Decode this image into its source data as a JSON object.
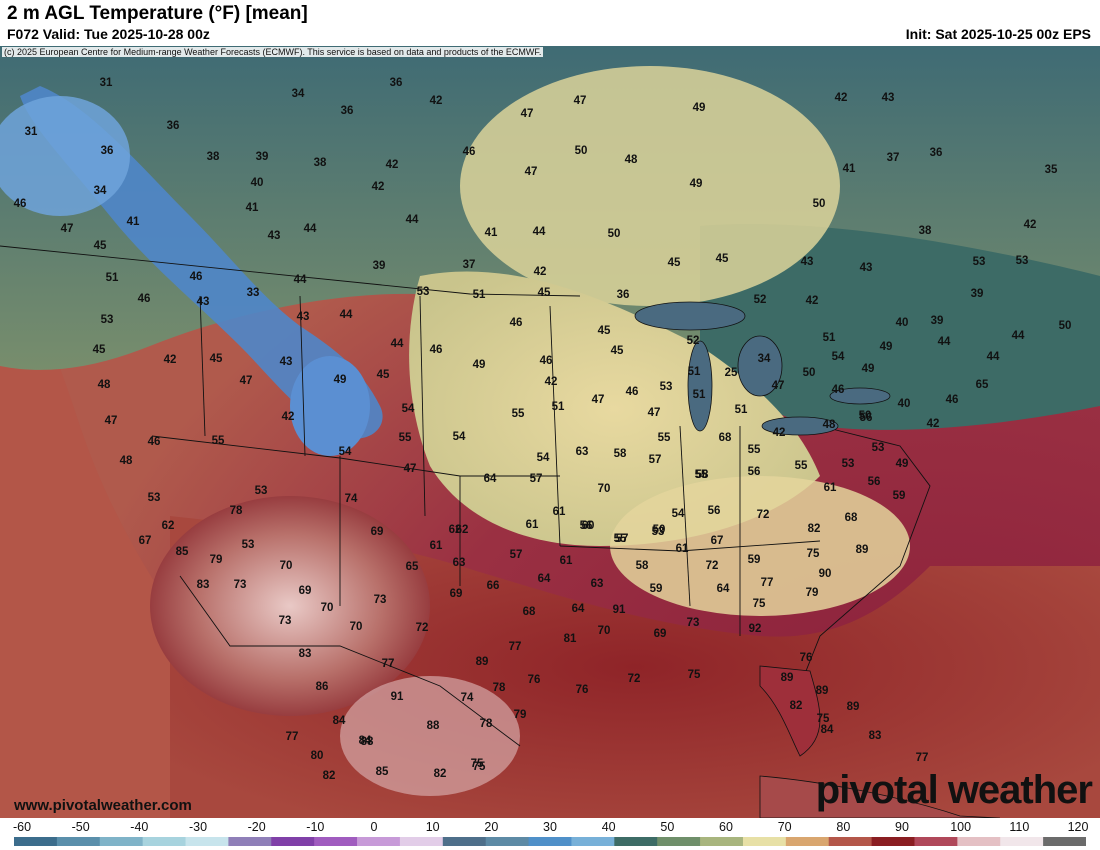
{
  "header": {
    "title": "2 m AGL Temperature (°F) [mean]",
    "valid": "F072 Valid: Tue 2025-10-28 00z",
    "init": "Init: Sat 2025-10-25 00z EPS"
  },
  "copyright": "(c) 2025 European Centre for Medium-range Weather Forecasts (ECMWF). This service is based on data and products of the ECMWF.",
  "footer": {
    "site": "www.pivotalweather.com",
    "logo": "pivotal weather"
  },
  "colorbar": {
    "units": "°F",
    "ticks": [
      "-60",
      "-50",
      "-40",
      "-30",
      "-20",
      "-10",
      "0",
      "10",
      "20",
      "30",
      "40",
      "50",
      "60",
      "70",
      "80",
      "90",
      "100",
      "110",
      "120"
    ],
    "colors": [
      "#3c6d8c",
      "#5a8fab",
      "#7fb3c8",
      "#a7d3de",
      "#c7e4ec",
      "#8f7fb8",
      "#8040a8",
      "#a05cbf",
      "#c79ad8",
      "#e2cde8",
      "#4e6f8a",
      "#5d8aa5",
      "#4f90c9",
      "#77b0d8",
      "#3d6c66",
      "#6f8f6a",
      "#a8b57e",
      "#e7e0a6",
      "#d9a66f",
      "#b4574a",
      "#8a1e22",
      "#b0485a",
      "#e4c0c4",
      "#f1e6ea",
      "#6b6b6b"
    ]
  },
  "temperature_labels": [
    {
      "city": "",
      "value": "31"
    },
    {
      "city": "",
      "value": "36"
    },
    {
      "city": "",
      "value": "34"
    },
    {
      "city": "",
      "value": "36"
    },
    {
      "city": "",
      "value": "42"
    },
    {
      "city": "",
      "value": "47"
    },
    {
      "city": "",
      "value": "49"
    },
    {
      "city": "",
      "value": "42"
    },
    {
      "city": "",
      "value": "43"
    },
    {
      "city": "",
      "value": "31"
    },
    {
      "city": "",
      "value": "36"
    },
    {
      "city": "",
      "value": "47"
    },
    {
      "city": "",
      "value": "36"
    },
    {
      "city": "",
      "value": "38"
    },
    {
      "city": "",
      "value": "39"
    },
    {
      "city": "",
      "value": "38"
    },
    {
      "city": "",
      "value": "46"
    },
    {
      "city": "",
      "value": "50"
    },
    {
      "city": "",
      "value": "48"
    },
    {
      "city": "",
      "value": "37"
    },
    {
      "city": "",
      "value": "36"
    },
    {
      "city": "",
      "value": "35"
    },
    {
      "city": "",
      "value": "34"
    },
    {
      "city": "",
      "value": "40"
    },
    {
      "city": "",
      "value": "42"
    },
    {
      "city": "",
      "value": "42"
    },
    {
      "city": "",
      "value": "47"
    },
    {
      "city": "",
      "value": "49"
    },
    {
      "city": "",
      "value": "41"
    },
    {
      "city": "",
      "value": "46"
    },
    {
      "city": "",
      "value": "41"
    },
    {
      "city": "",
      "value": "41"
    },
    {
      "city": "",
      "value": "44"
    },
    {
      "city": "",
      "value": "47"
    },
    {
      "city": "",
      "value": "43"
    },
    {
      "city": "",
      "value": "44"
    },
    {
      "city": "",
      "value": "41"
    },
    {
      "city": "",
      "value": "44"
    },
    {
      "city": "",
      "value": "50"
    },
    {
      "city": "",
      "value": "50"
    },
    {
      "city": "",
      "value": "38"
    },
    {
      "city": "",
      "value": "42"
    },
    {
      "city": "",
      "value": "45"
    },
    {
      "city": "",
      "value": "46"
    },
    {
      "city": "",
      "value": "39"
    },
    {
      "city": "",
      "value": "37"
    },
    {
      "city": "",
      "value": "45"
    },
    {
      "city": "",
      "value": "45"
    },
    {
      "city": "",
      "value": "43"
    },
    {
      "city": "",
      "value": "43"
    },
    {
      "city": "",
      "value": "53"
    },
    {
      "city": "",
      "value": "53"
    },
    {
      "city": "",
      "value": "51"
    },
    {
      "city": "",
      "value": "42"
    },
    {
      "city": "",
      "value": "46"
    },
    {
      "city": "",
      "value": "53"
    },
    {
      "city": "",
      "value": "51"
    },
    {
      "city": "",
      "value": "45"
    },
    {
      "city": "",
      "value": "36"
    },
    {
      "city": "",
      "value": "43"
    },
    {
      "city": "",
      "value": "33"
    },
    {
      "city": "",
      "value": "44"
    },
    {
      "city": "",
      "value": "52"
    },
    {
      "city": "",
      "value": "42"
    },
    {
      "city": "",
      "value": "39"
    },
    {
      "city": "",
      "value": "43"
    },
    {
      "city": "",
      "value": "44"
    },
    {
      "city": "",
      "value": "46"
    },
    {
      "city": "",
      "value": "45"
    },
    {
      "city": "",
      "value": "53"
    },
    {
      "city": "",
      "value": "44"
    },
    {
      "city": "",
      "value": "47"
    },
    {
      "city": "",
      "value": "40"
    },
    {
      "city": "",
      "value": "39"
    },
    {
      "city": "",
      "value": "44"
    },
    {
      "city": "",
      "value": "50"
    },
    {
      "city": "",
      "value": "52"
    },
    {
      "city": "",
      "value": "51"
    },
    {
      "city": "",
      "value": "49"
    },
    {
      "city": "",
      "value": "44"
    },
    {
      "city": "",
      "value": "45"
    },
    {
      "city": "",
      "value": "42"
    },
    {
      "city": "",
      "value": "46"
    },
    {
      "city": "",
      "value": "49"
    },
    {
      "city": "",
      "value": "46"
    },
    {
      "city": "",
      "value": "45"
    },
    {
      "city": "",
      "value": "51"
    },
    {
      "city": "",
      "value": "25"
    },
    {
      "city": "",
      "value": "34"
    },
    {
      "city": "",
      "value": "54"
    },
    {
      "city": "",
      "value": "49"
    },
    {
      "city": "",
      "value": "44"
    },
    {
      "city": "",
      "value": "45"
    },
    {
      "city": "",
      "value": "43"
    },
    {
      "city": "",
      "value": "49"
    },
    {
      "city": "",
      "value": "45"
    },
    {
      "city": "",
      "value": "48"
    },
    {
      "city": "",
      "value": "42"
    },
    {
      "city": "",
      "value": "47"
    },
    {
      "city": "",
      "value": "46"
    },
    {
      "city": "",
      "value": "53"
    },
    {
      "city": "",
      "value": "51"
    },
    {
      "city": "",
      "value": "47"
    },
    {
      "city": "",
      "value": "50"
    },
    {
      "city": "",
      "value": "46"
    },
    {
      "city": "",
      "value": "50"
    },
    {
      "city": "",
      "value": "40"
    },
    {
      "city": "",
      "value": "42"
    },
    {
      "city": "",
      "value": "46"
    },
    {
      "city": "",
      "value": "65"
    },
    {
      "city": "",
      "value": "47"
    },
    {
      "city": "",
      "value": "42"
    },
    {
      "city": "",
      "value": "54"
    },
    {
      "city": "",
      "value": "55"
    },
    {
      "city": "",
      "value": "51"
    },
    {
      "city": "",
      "value": "47"
    },
    {
      "city": "",
      "value": "51"
    },
    {
      "city": "",
      "value": "42"
    },
    {
      "city": "",
      "value": "48"
    },
    {
      "city": "",
      "value": "56"
    },
    {
      "city": "",
      "value": "46"
    },
    {
      "city": "",
      "value": "55"
    },
    {
      "city": "",
      "value": "55"
    },
    {
      "city": "",
      "value": "54"
    },
    {
      "city": "",
      "value": "54"
    },
    {
      "city": "",
      "value": "47"
    },
    {
      "city": "",
      "value": "55"
    },
    {
      "city": "",
      "value": "68"
    },
    {
      "city": "",
      "value": "54"
    },
    {
      "city": "",
      "value": "63"
    },
    {
      "city": "",
      "value": "58"
    },
    {
      "city": "",
      "value": "57"
    },
    {
      "city": "",
      "value": "55"
    },
    {
      "city": "",
      "value": "55"
    },
    {
      "city": "",
      "value": "53"
    },
    {
      "city": "",
      "value": "48"
    },
    {
      "city": "",
      "value": "62"
    },
    {
      "city": "",
      "value": "64"
    },
    {
      "city": "",
      "value": "57"
    },
    {
      "city": "",
      "value": "58"
    },
    {
      "city": "",
      "value": "56"
    },
    {
      "city": "",
      "value": "55"
    },
    {
      "city": "",
      "value": "53"
    },
    {
      "city": "",
      "value": "53"
    },
    {
      "city": "",
      "value": "53"
    },
    {
      "city": "",
      "value": "74"
    },
    {
      "city": "",
      "value": "70"
    },
    {
      "city": "",
      "value": "61"
    },
    {
      "city": "",
      "value": "56"
    },
    {
      "city": "",
      "value": "49"
    },
    {
      "city": "",
      "value": "59"
    },
    {
      "city": "",
      "value": "78"
    },
    {
      "city": "",
      "value": "56"
    },
    {
      "city": "",
      "value": "69"
    },
    {
      "city": "",
      "value": "62"
    },
    {
      "city": "",
      "value": "61"
    },
    {
      "city": "",
      "value": "61"
    },
    {
      "city": "",
      "value": "56"
    },
    {
      "city": "",
      "value": "55"
    },
    {
      "city": "",
      "value": "50"
    },
    {
      "city": "",
      "value": "54"
    },
    {
      "city": "",
      "value": "72"
    },
    {
      "city": "",
      "value": "68"
    },
    {
      "city": "",
      "value": "62"
    },
    {
      "city": "",
      "value": "61"
    },
    {
      "city": "",
      "value": "60"
    },
    {
      "city": "",
      "value": "57"
    },
    {
      "city": "",
      "value": "53"
    },
    {
      "city": "",
      "value": "67"
    },
    {
      "city": "",
      "value": "82"
    },
    {
      "city": "",
      "value": "67"
    },
    {
      "city": "",
      "value": "53"
    },
    {
      "city": "",
      "value": "57"
    },
    {
      "city": "",
      "value": "59"
    },
    {
      "city": "",
      "value": "75"
    },
    {
      "city": "",
      "value": "89"
    },
    {
      "city": "",
      "value": "85"
    },
    {
      "city": "",
      "value": "79"
    },
    {
      "city": "",
      "value": "70"
    },
    {
      "city": "",
      "value": "65"
    },
    {
      "city": "",
      "value": "63"
    },
    {
      "city": "",
      "value": "61"
    },
    {
      "city": "",
      "value": "58"
    },
    {
      "city": "",
      "value": "61"
    },
    {
      "city": "",
      "value": "72"
    },
    {
      "city": "",
      "value": "90"
    },
    {
      "city": "",
      "value": "83"
    },
    {
      "city": "",
      "value": "73"
    },
    {
      "city": "",
      "value": "69"
    },
    {
      "city": "",
      "value": "66"
    },
    {
      "city": "",
      "value": "64"
    },
    {
      "city": "",
      "value": "63"
    },
    {
      "city": "",
      "value": "59"
    },
    {
      "city": "",
      "value": "64"
    },
    {
      "city": "",
      "value": "77"
    },
    {
      "city": "",
      "value": "79"
    },
    {
      "city": "",
      "value": "70"
    },
    {
      "city": "",
      "value": "73"
    },
    {
      "city": "",
      "value": "69"
    },
    {
      "city": "",
      "value": "68"
    },
    {
      "city": "",
      "value": "64"
    },
    {
      "city": "",
      "value": "91"
    },
    {
      "city": "",
      "value": "75"
    },
    {
      "city": "",
      "value": "73"
    },
    {
      "city": "",
      "value": "70"
    },
    {
      "city": "",
      "value": "72"
    },
    {
      "city": "",
      "value": "70"
    },
    {
      "city": "",
      "value": "69"
    },
    {
      "city": "",
      "value": "73"
    },
    {
      "city": "",
      "value": "92"
    },
    {
      "city": "",
      "value": "81"
    },
    {
      "city": "",
      "value": "83"
    },
    {
      "city": "",
      "value": "77"
    },
    {
      "city": "",
      "value": "89"
    },
    {
      "city": "",
      "value": "77"
    },
    {
      "city": "",
      "value": "91"
    },
    {
      "city": "",
      "value": "74"
    },
    {
      "city": "",
      "value": "78"
    },
    {
      "city": "",
      "value": "76"
    },
    {
      "city": "",
      "value": "76"
    },
    {
      "city": "",
      "value": "72"
    },
    {
      "city": "",
      "value": "75"
    },
    {
      "city": "",
      "value": "76"
    },
    {
      "city": "",
      "value": "89"
    },
    {
      "city": "",
      "value": "89"
    },
    {
      "city": "",
      "value": "86"
    },
    {
      "city": "",
      "value": "84"
    },
    {
      "city": "",
      "value": "88"
    },
    {
      "city": "",
      "value": "78"
    },
    {
      "city": "",
      "value": "79"
    },
    {
      "city": "",
      "value": "82"
    },
    {
      "city": "",
      "value": "89"
    },
    {
      "city": "",
      "value": "84"
    },
    {
      "city": "",
      "value": "77"
    },
    {
      "city": "",
      "value": "88"
    },
    {
      "city": "",
      "value": "75"
    },
    {
      "city": "",
      "value": "75"
    },
    {
      "city": "",
      "value": "80"
    },
    {
      "city": "",
      "value": "84"
    },
    {
      "city": "",
      "value": "83"
    },
    {
      "city": "",
      "value": "77"
    },
    {
      "city": "",
      "value": "85"
    },
    {
      "city": "",
      "value": "82"
    },
    {
      "city": "",
      "value": "75"
    },
    {
      "city": "",
      "value": "82"
    }
  ]
}
